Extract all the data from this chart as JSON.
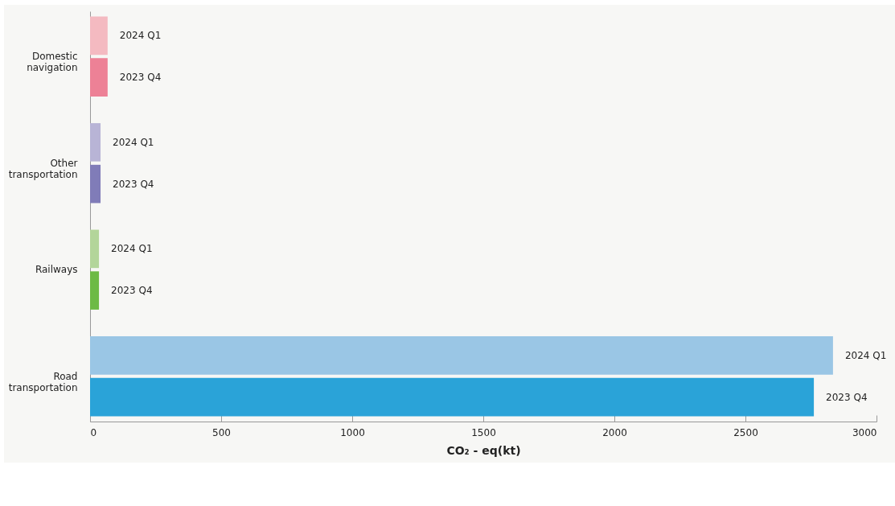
{
  "chart_data": {
    "type": "bar",
    "orientation": "horizontal",
    "categories": [
      "Domestic navigation",
      "Other transportation",
      "Railways",
      "Road transportation"
    ],
    "series": [
      {
        "name": "2024 Q1",
        "colors": [
          "#f4bac1",
          "#b8b4d6",
          "#b3d59a",
          "#9ac6e5"
        ],
        "values": [
          67,
          40,
          34,
          2834
        ]
      },
      {
        "name": "2023 Q4",
        "colors": [
          "#ed8196",
          "#807cb8",
          "#6dba45",
          "#2aa3d8"
        ],
        "values": [
          67,
          40,
          34,
          2761
        ]
      }
    ],
    "xlabel": "CO₂ - eq(kt)",
    "xlim": [
      0,
      3000
    ],
    "xticks": [
      0,
      500,
      1000,
      1500,
      2000,
      2500,
      3000
    ],
    "grid": false,
    "legend": false
  }
}
